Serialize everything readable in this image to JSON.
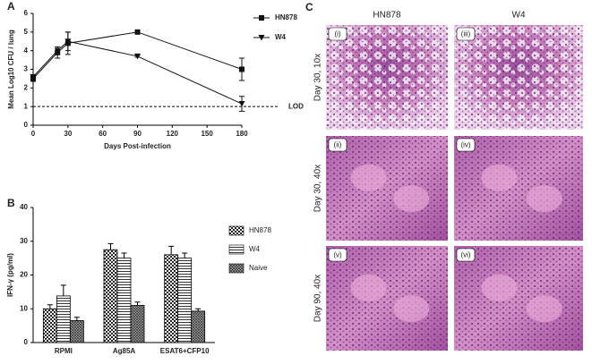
{
  "chart_data": [
    {
      "type": "line",
      "panel": "A",
      "ylabel": "Mean Log10 CFU / lung",
      "xlabel": "Days Post-infection",
      "x": [
        0,
        21,
        30,
        90,
        180
      ],
      "series": [
        {
          "name": "HN878",
          "color": "#111111",
          "marker": "square",
          "values": [
            2.5,
            3.9,
            4.4,
            5.0,
            3.0
          ],
          "errors": [
            0.15,
            0.3,
            0.6,
            0.05,
            0.6
          ]
        },
        {
          "name": "W4",
          "color": "#111111",
          "marker": "triangle",
          "values": [
            2.6,
            4.0,
            4.5,
            3.7,
            1.15
          ],
          "errors": [
            0.1,
            0.2,
            0.5,
            0.05,
            0.4
          ]
        }
      ],
      "xlim": [
        0,
        180
      ],
      "xticks": [
        0,
        30,
        60,
        90,
        120,
        150,
        180
      ],
      "ylim": [
        0,
        6
      ],
      "yticks": [
        0,
        1,
        2,
        3,
        4,
        5,
        6
      ],
      "reference_line": {
        "value": 1,
        "label": "LOD"
      },
      "legend": "right"
    },
    {
      "type": "bar",
      "panel": "B",
      "ylabel": "IFN-γ (pg/ml)",
      "categories": [
        "RPMI",
        "Ag85A",
        "ESAT6+CFP10"
      ],
      "series": [
        {
          "name": "HN878",
          "pattern": "checker",
          "values": [
            10,
            27.5,
            26
          ],
          "errors": [
            1.2,
            1.8,
            2.5
          ]
        },
        {
          "name": "W4",
          "pattern": "stripes",
          "values": [
            13.8,
            25,
            25
          ],
          "errors": [
            3.2,
            1.5,
            1.5
          ]
        },
        {
          "name": "Naive",
          "pattern": "crosshatch",
          "values": [
            6.5,
            11,
            9.3
          ],
          "errors": [
            1,
            1,
            0.7
          ]
        }
      ],
      "ylim": [
        0,
        40
      ],
      "yticks": [
        0,
        10,
        20,
        30,
        40
      ],
      "legend": "right"
    }
  ],
  "histology": {
    "panel": "C",
    "columns": [
      "HN878",
      "W4"
    ],
    "rows": [
      "Day 30, 10x",
      "Day 30, 40x",
      "Day 90, 40x"
    ],
    "labels": [
      [
        "(i)",
        "(iii)"
      ],
      [
        "(ii)",
        "(iv)"
      ],
      [
        "(v)",
        "(vi)"
      ]
    ]
  }
}
